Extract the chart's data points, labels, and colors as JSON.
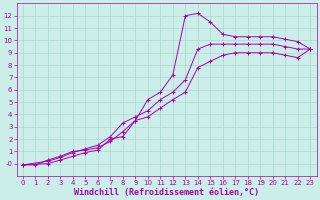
{
  "background_color": "#cceee8",
  "grid_color": "#aad8d0",
  "line_color": "#aa00aa",
  "marker": "+",
  "xlim": [
    -0.5,
    23.5
  ],
  "ylim": [
    -1.0,
    13.0
  ],
  "xticks": [
    0,
    1,
    2,
    3,
    4,
    5,
    6,
    7,
    8,
    9,
    10,
    11,
    12,
    13,
    14,
    15,
    16,
    17,
    18,
    19,
    20,
    21,
    22,
    23
  ],
  "yticks": [
    0,
    1,
    2,
    3,
    4,
    5,
    6,
    7,
    8,
    9,
    10,
    11,
    12
  ],
  "xlabel": "Windchill (Refroidissement éolien,°C)",
  "xlabel_color": "#aa00aa",
  "tick_color": "#aa00aa",
  "line1_x": [
    0,
    1,
    2,
    3,
    4,
    5,
    6,
    7,
    8,
    9,
    10,
    11,
    12,
    13,
    14,
    15,
    16,
    17,
    18,
    19,
    20,
    21,
    22,
    23
  ],
  "line1_y": [
    -0.1,
    -0.1,
    0.3,
    0.6,
    1.0,
    1.1,
    1.3,
    1.8,
    2.6,
    3.5,
    5.2,
    5.8,
    7.2,
    12.0,
    12.2,
    11.5,
    10.5,
    10.3,
    10.3,
    10.3,
    10.3,
    10.1,
    9.9,
    9.3
  ],
  "line2_x": [
    0,
    2,
    3,
    4,
    5,
    6,
    7,
    8,
    9,
    10,
    11,
    12,
    13,
    14,
    15,
    16,
    17,
    18,
    19,
    20,
    21,
    22,
    23
  ],
  "line2_y": [
    -0.1,
    0.2,
    0.5,
    0.9,
    1.2,
    1.5,
    2.2,
    3.3,
    3.8,
    4.3,
    5.2,
    5.8,
    6.8,
    9.3,
    9.7,
    9.7,
    9.7,
    9.7,
    9.7,
    9.7,
    9.5,
    9.3,
    9.3
  ],
  "line3_x": [
    0,
    2,
    3,
    4,
    5,
    6,
    7,
    8,
    9,
    10,
    11,
    12,
    13,
    14,
    15,
    16,
    17,
    18,
    19,
    20,
    21,
    22,
    23
  ],
  "line3_y": [
    -0.1,
    0.0,
    0.3,
    0.6,
    0.9,
    1.1,
    2.0,
    2.2,
    3.5,
    3.8,
    4.5,
    5.2,
    5.8,
    7.8,
    8.3,
    8.8,
    9.0,
    9.0,
    9.0,
    9.0,
    8.8,
    8.6,
    9.3
  ],
  "tick_fontsize": 5.0,
  "xlabel_fontsize": 6.0,
  "ytick_labels": [
    "-0",
    "1",
    "2",
    "3",
    "4",
    "5",
    "6",
    "7",
    "8",
    "9",
    "10",
    "11",
    "12"
  ]
}
